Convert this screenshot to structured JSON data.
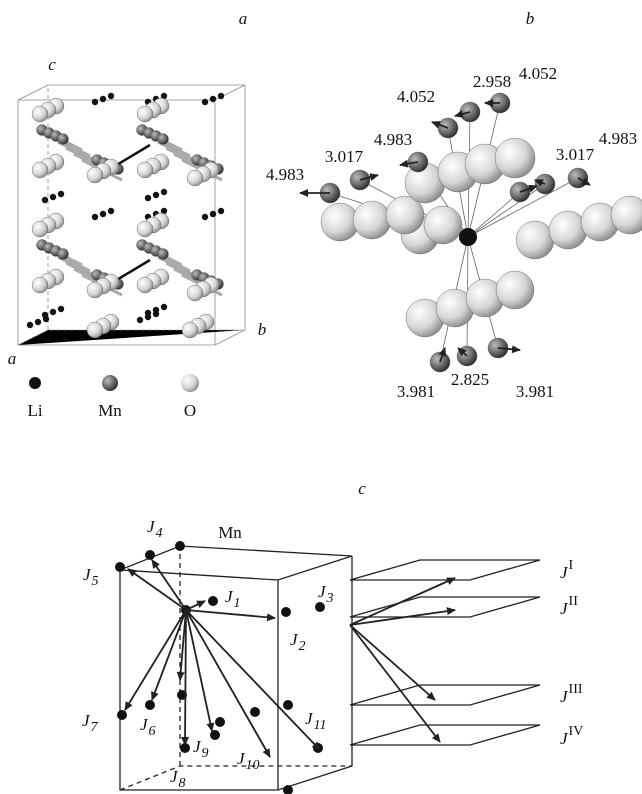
{
  "panels": {
    "a": "a",
    "b": "b",
    "c": "c"
  },
  "panel_a": {
    "axes": {
      "c": "c",
      "b": "b",
      "a": "a"
    },
    "legend": [
      "Li",
      "Mn",
      "O"
    ]
  },
  "panel_b": {
    "distances": [
      "2.958",
      "4.052",
      "4.052",
      "4.983",
      "3.017",
      "4.983",
      "3.017",
      "4.983",
      "3.981",
      "2.825",
      "3.981"
    ]
  },
  "panel_c": {
    "atom": "Mn",
    "couplings": [
      {
        "symbol": "J",
        "index": "1"
      },
      {
        "symbol": "J",
        "index": "2"
      },
      {
        "symbol": "J",
        "index": "3"
      },
      {
        "symbol": "J",
        "index": "4"
      },
      {
        "symbol": "J",
        "index": "5"
      },
      {
        "symbol": "J",
        "index": "6"
      },
      {
        "symbol": "J",
        "index": "7"
      },
      {
        "symbol": "J",
        "index": "8"
      },
      {
        "symbol": "J",
        "index": "9"
      },
      {
        "symbol": "J",
        "index": "10"
      },
      {
        "symbol": "J",
        "index": "11"
      }
    ],
    "planes": [
      {
        "symbol": "J",
        "index": "I"
      },
      {
        "symbol": "J",
        "index": "II"
      },
      {
        "symbol": "J",
        "index": "III"
      },
      {
        "symbol": "J",
        "index": "IV"
      }
    ]
  }
}
